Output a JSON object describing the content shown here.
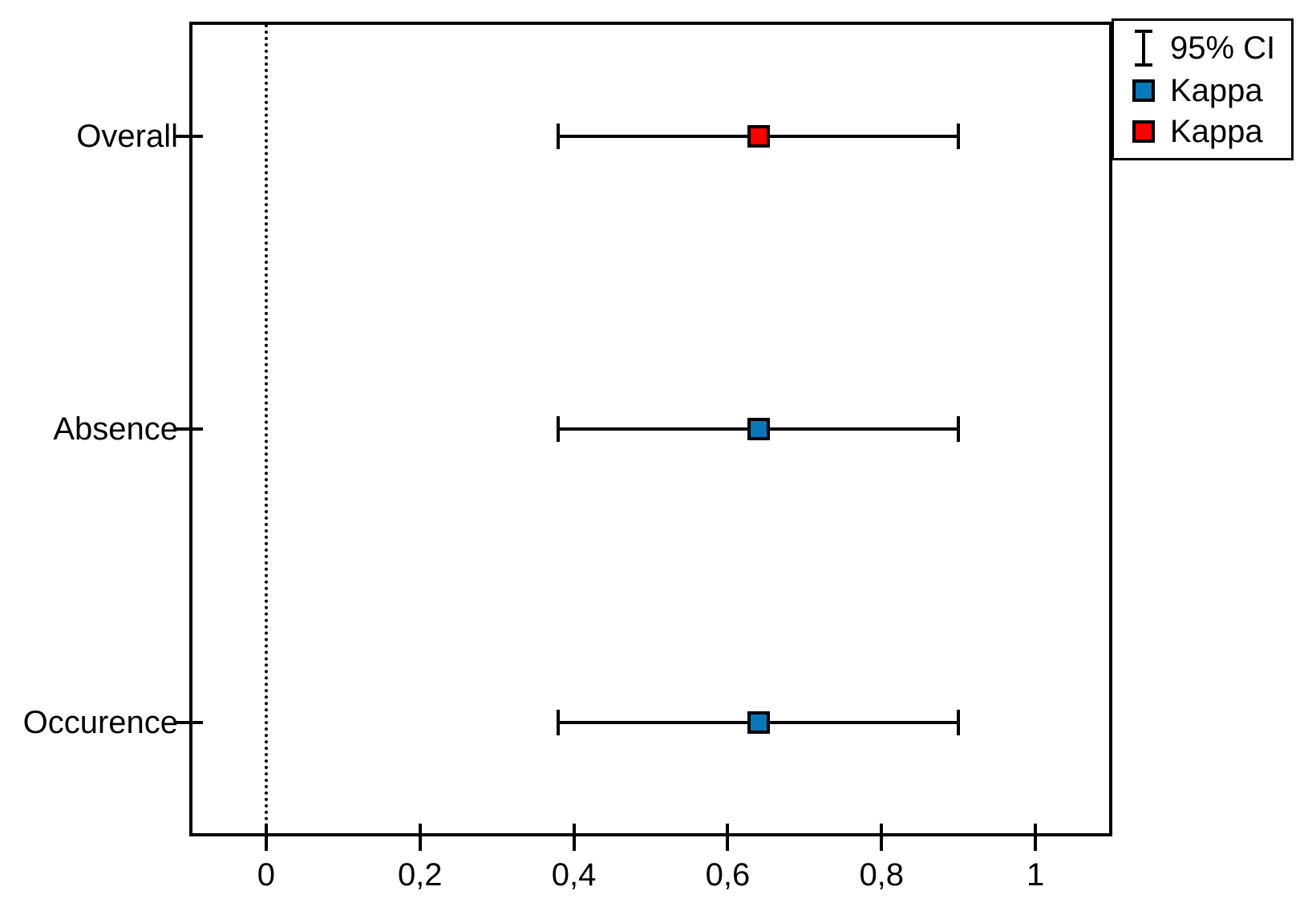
{
  "chart_data": {
    "type": "scatter",
    "subtype": "horizontal-error-bar-forest-plot",
    "title": "",
    "xlabel": "",
    "ylabel": "",
    "categories": [
      "Overall",
      "Absence",
      "Occurence"
    ],
    "points": [
      {
        "category": "Overall",
        "kappa": 0.64,
        "ci_low": 0.38,
        "ci_high": 0.9,
        "marker_color": "#fa0000"
      },
      {
        "category": "Absence",
        "kappa": 0.64,
        "ci_low": 0.38,
        "ci_high": 0.9,
        "marker_color": "#0878b8"
      },
      {
        "category": "Occurence",
        "kappa": 0.64,
        "ci_low": 0.38,
        "ci_high": 0.9,
        "marker_color": "#0878b8"
      }
    ],
    "x_axis": {
      "min": -0.1,
      "max": 1.1,
      "ticks": [
        {
          "value": 0,
          "label": "0"
        },
        {
          "value": 0.2,
          "label": "0,2"
        },
        {
          "value": 0.4,
          "label": "0,4"
        },
        {
          "value": 0.6,
          "label": "0,6"
        },
        {
          "value": 0.8,
          "label": "0,8"
        },
        {
          "value": 1,
          "label": "1"
        }
      ],
      "reference_line": {
        "value": 0,
        "style": "dotted"
      }
    },
    "legend": {
      "position": "top-right",
      "entries": [
        {
          "symbol": "error-bar",
          "label": "95% CI",
          "color": "#000000"
        },
        {
          "symbol": "square",
          "label": "Kappa",
          "color": "#0878b8"
        },
        {
          "symbol": "square",
          "label": "Kappa",
          "color": "#fa0000"
        }
      ]
    },
    "grid": false
  },
  "colors": {
    "axis": "#000000",
    "background": "#ffffff",
    "kappa_blue": "#0878b8",
    "kappa_red": "#fa0000"
  }
}
